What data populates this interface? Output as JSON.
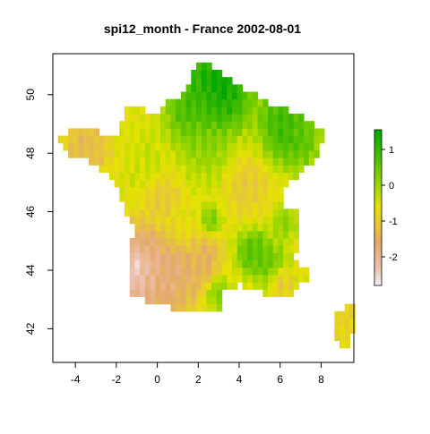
{
  "chart_data": {
    "type": "heatmap",
    "title": "spi12_month - France 2002-08-01",
    "xlabel": "",
    "ylabel": "",
    "xlim": [
      -5.1,
      9.6
    ],
    "ylim": [
      40.85,
      51.4
    ],
    "x_ticks": [
      -4,
      -2,
      0,
      2,
      4,
      6,
      8
    ],
    "y_ticks": [
      42,
      44,
      46,
      48,
      50
    ],
    "x_tick_labels": [
      "-4",
      "-2",
      "0",
      "2",
      "4",
      "6",
      "8"
    ],
    "y_tick_labels": [
      "42",
      "44",
      "46",
      "48",
      "50"
    ],
    "grid": false,
    "cell_size_deg": 0.25,
    "color_scale": {
      "min": -2.8,
      "max": 1.55,
      "ticks": [
        1,
        0,
        -1,
        -2
      ],
      "tick_labels": [
        "1",
        "0",
        "-1",
        "-2"
      ],
      "stops": [
        {
          "value": -2.8,
          "color": "#f2f2f2"
        },
        {
          "value": -2.3,
          "color": "#ecc2ae"
        },
        {
          "value": -1.6,
          "color": "#e4a96c"
        },
        {
          "value": -1.1,
          "color": "#e6c836"
        },
        {
          "value": -0.6,
          "color": "#e6e300"
        },
        {
          "value": -0.1,
          "color": "#a8d900"
        },
        {
          "value": 0.6,
          "color": "#5ec400"
        },
        {
          "value": 1.55,
          "color": "#00a600"
        }
      ]
    },
    "regions": [
      {
        "name": "mainland",
        "outline": [
          [
            -4.8,
            48.6
          ],
          [
            -4.5,
            48.7
          ],
          [
            -3.5,
            48.8
          ],
          [
            -2.5,
            48.7
          ],
          [
            -1.8,
            48.65
          ],
          [
            -1.6,
            49.6
          ],
          [
            -1.2,
            49.7
          ],
          [
            -0.5,
            49.4
          ],
          [
            0.2,
            49.5
          ],
          [
            0.6,
            49.8
          ],
          [
            1.5,
            50.1
          ],
          [
            1.6,
            50.6
          ],
          [
            1.9,
            51.0
          ],
          [
            2.6,
            51.1
          ],
          [
            3.0,
            50.8
          ],
          [
            4.2,
            50.2
          ],
          [
            4.8,
            50.1
          ],
          [
            5.8,
            49.5
          ],
          [
            6.4,
            49.5
          ],
          [
            7.6,
            49.0
          ],
          [
            8.2,
            48.8
          ],
          [
            7.6,
            47.6
          ],
          [
            7.0,
            47.4
          ],
          [
            6.0,
            46.6
          ],
          [
            6.2,
            46.2
          ],
          [
            7.0,
            45.9
          ],
          [
            7.0,
            45.2
          ],
          [
            6.7,
            44.5
          ],
          [
            7.5,
            43.8
          ],
          [
            6.5,
            43.2
          ],
          [
            5.2,
            43.2
          ],
          [
            4.0,
            43.5
          ],
          [
            3.2,
            43.2
          ],
          [
            3.0,
            42.5
          ],
          [
            2.5,
            42.5
          ],
          [
            1.5,
            42.6
          ],
          [
            0.0,
            42.8
          ],
          [
            -1.5,
            43.3
          ],
          [
            -1.3,
            44.2
          ],
          [
            -1.2,
            45.5
          ],
          [
            -1.9,
            46.7
          ],
          [
            -2.3,
            47.2
          ],
          [
            -3.3,
            47.7
          ],
          [
            -4.5,
            48.0
          ]
        ]
      },
      {
        "name": "corsica",
        "outline": [
          [
            9.4,
            43.0
          ],
          [
            9.6,
            42.7
          ],
          [
            9.6,
            42.0
          ],
          [
            9.3,
            41.4
          ],
          [
            8.9,
            41.5
          ],
          [
            8.6,
            42.0
          ],
          [
            8.6,
            42.5
          ],
          [
            9.0,
            42.7
          ]
        ]
      }
    ],
    "anomaly_fields": [
      {
        "x": 3.0,
        "y": 50.4,
        "value": 1.9,
        "spread": 1.25
      },
      {
        "x": 1.6,
        "y": 49.5,
        "value": 1.0,
        "spread": 0.9
      },
      {
        "x": 6.2,
        "y": 49.0,
        "value": 1.3,
        "spread": 0.9
      },
      {
        "x": 7.0,
        "y": 48.4,
        "value": 0.7,
        "spread": 0.7
      },
      {
        "x": 2.3,
        "y": 48.2,
        "value": 0.2,
        "spread": 0.8
      },
      {
        "x": 4.7,
        "y": 44.6,
        "value": 0.9,
        "spread": 0.6
      },
      {
        "x": 5.6,
        "y": 44.2,
        "value": 0.6,
        "spread": 0.55
      },
      {
        "x": 6.2,
        "y": 45.6,
        "value": 0.3,
        "spread": 0.4
      },
      {
        "x": 3.0,
        "y": 43.3,
        "value": 0.4,
        "spread": 0.45
      },
      {
        "x": 2.6,
        "y": 45.7,
        "value": 0.5,
        "spread": 0.35
      },
      {
        "x": -3.4,
        "y": 48.2,
        "value": -1.5,
        "spread": 0.8
      },
      {
        "x": -0.6,
        "y": 47.8,
        "value": -0.3,
        "spread": 0.7
      },
      {
        "x": -1.0,
        "y": 44.0,
        "value": -2.5,
        "spread": 1.1
      },
      {
        "x": -1.1,
        "y": 44.1,
        "value": -3.0,
        "spread": 0.3
      },
      {
        "x": 0.8,
        "y": 43.7,
        "value": -1.9,
        "spread": 0.9
      },
      {
        "x": 2.3,
        "y": 44.3,
        "value": -1.6,
        "spread": 0.7
      },
      {
        "x": 0.3,
        "y": 46.5,
        "value": -1.2,
        "spread": 0.6
      },
      {
        "x": 4.4,
        "y": 46.8,
        "value": -1.2,
        "spread": 0.7
      },
      {
        "x": 6.0,
        "y": 43.7,
        "value": -1.4,
        "spread": 0.4
      },
      {
        "x": 9.2,
        "y": 42.3,
        "value": -1.0,
        "spread": 0.8
      }
    ],
    "base_value": -0.6
  }
}
